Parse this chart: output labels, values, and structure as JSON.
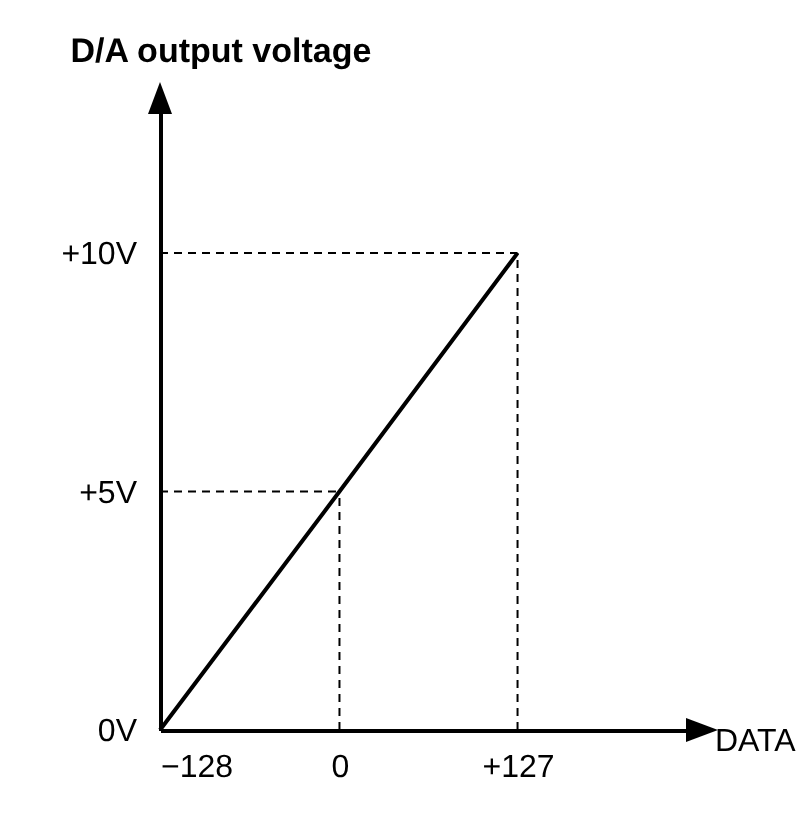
{
  "chart_data": {
    "type": "line",
    "title": "D/A output voltage",
    "xlabel": "DATA",
    "x": [
      -128,
      0,
      127
    ],
    "series": [
      {
        "color": "#000000",
        "values": [
          0,
          5,
          10
        ]
      }
    ],
    "xlim": [
      -128,
      250
    ],
    "ylim": [
      0,
      13
    ],
    "xticks": [
      {
        "value": -128,
        "label": "−128"
      },
      {
        "value": 0,
        "label": "0"
      },
      {
        "value": 127,
        "label": "+127"
      }
    ],
    "yticks": [
      {
        "value": 0,
        "label": "0V"
      },
      {
        "value": 5,
        "label": "+5V"
      },
      {
        "value": 10,
        "label": "+10V"
      }
    ],
    "ref_lines": [
      {
        "axis": "x",
        "value": 0,
        "line_style": "dashed"
      },
      {
        "axis": "x",
        "value": 127,
        "line_style": "dashed"
      },
      {
        "axis": "y",
        "value": 5,
        "line_style": "dashed"
      },
      {
        "axis": "y",
        "value": 10,
        "line_style": "dashed"
      }
    ]
  }
}
